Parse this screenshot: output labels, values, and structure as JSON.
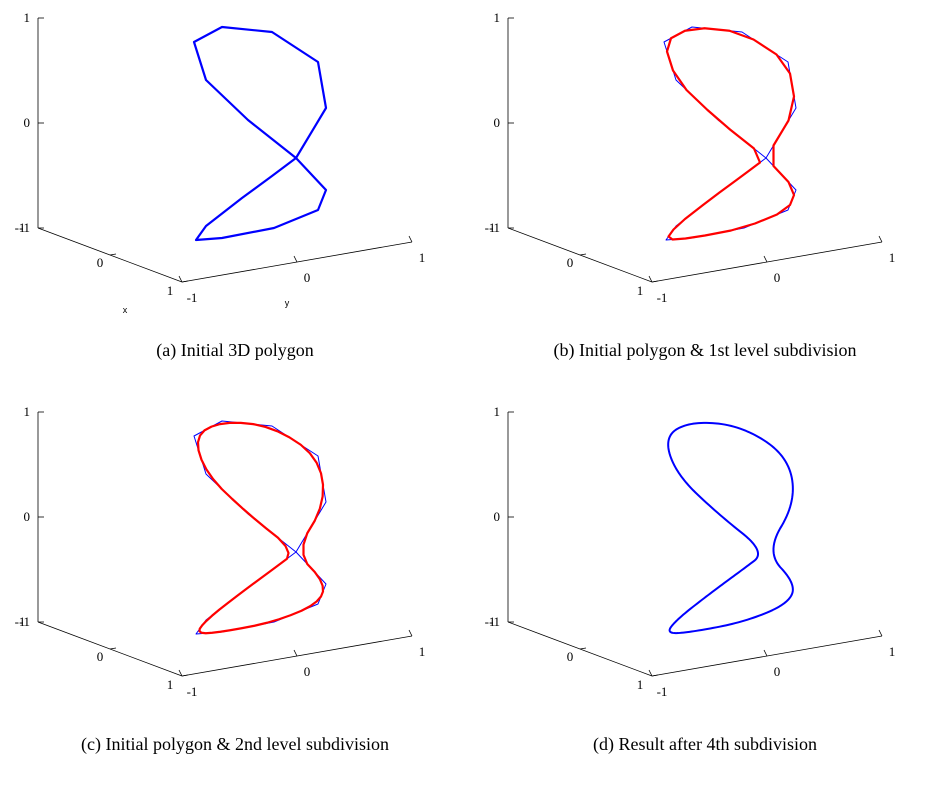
{
  "chart_data": [
    {
      "type": "line3d",
      "caption": "(a)  Initial 3D polygon",
      "xlabel": "x",
      "ylabel": "y",
      "zlabel": "",
      "xlim": [
        -1,
        1
      ],
      "ylim": [
        -1,
        1
      ],
      "zlim": [
        -1,
        1
      ],
      "x_ticks": [
        "-1",
        "0",
        "1"
      ],
      "y_ticks": [
        "-1",
        "0",
        "1"
      ],
      "z_ticks": [
        "-1",
        "0",
        "1"
      ],
      "grid": false,
      "series": [
        {
          "style": "control",
          "color": "#0000ff",
          "smooth_level": 0,
          "line_width": 2.2
        }
      ]
    },
    {
      "type": "line3d",
      "caption": "(b)  Initial polygon & 1st level subdivision",
      "xlabel": "",
      "ylabel": "",
      "zlabel": "",
      "xlim": [
        -1,
        1
      ],
      "ylim": [
        -1,
        1
      ],
      "zlim": [
        -1,
        1
      ],
      "x_ticks": [
        "-1",
        "0",
        "1"
      ],
      "y_ticks": [
        "-1",
        "0",
        "1"
      ],
      "z_ticks": [
        "-1",
        "0",
        "1"
      ],
      "grid": false,
      "series": [
        {
          "style": "control",
          "color": "#0000ff",
          "smooth_level": 0,
          "line_width": 1.0
        },
        {
          "style": "subdivided",
          "color": "#ff0000",
          "smooth_level": 1,
          "line_width": 2.2
        }
      ]
    },
    {
      "type": "line3d",
      "caption": "(c)  Initial polygon & 2nd level subdivision",
      "xlabel": "",
      "ylabel": "",
      "zlabel": "",
      "xlim": [
        -1,
        1
      ],
      "ylim": [
        -1,
        1
      ],
      "zlim": [
        -1,
        1
      ],
      "x_ticks": [
        "-1",
        "0",
        "1"
      ],
      "y_ticks": [
        "-1",
        "0",
        "1"
      ],
      "z_ticks": [
        "-1",
        "0",
        "1"
      ],
      "grid": false,
      "series": [
        {
          "style": "control",
          "color": "#0000ff",
          "smooth_level": 0,
          "line_width": 1.0
        },
        {
          "style": "subdivided",
          "color": "#ff0000",
          "smooth_level": 2,
          "line_width": 2.2
        }
      ]
    },
    {
      "type": "line3d",
      "caption": "(d)  Result after 4th subdivision",
      "xlabel": "",
      "ylabel": "",
      "zlabel": "",
      "xlim": [
        -1,
        1
      ],
      "ylim": [
        -1,
        1
      ],
      "zlim": [
        -1,
        1
      ],
      "x_ticks": [
        "-1",
        "0",
        "1"
      ],
      "y_ticks": [
        "-1",
        "0",
        "1"
      ],
      "z_ticks": [
        "-1",
        "0",
        "1"
      ],
      "grid": false,
      "series": [
        {
          "style": "subdivided",
          "color": "#0000ff",
          "smooth_level": 4,
          "line_width": 2.0
        }
      ]
    }
  ]
}
